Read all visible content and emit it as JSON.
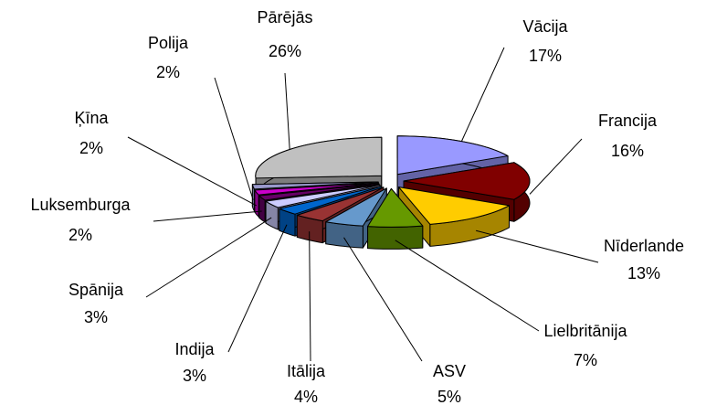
{
  "chart_data": {
    "type": "pie",
    "categories": [
      "Vācija",
      "Francija",
      "Nīderlande",
      "Lielbritānija",
      "ASV",
      "Itālija",
      "Indija",
      "Spānija",
      "Luksemburga",
      "Ķīna",
      "Polija",
      "Pārējās"
    ],
    "values": [
      17,
      16,
      13,
      7,
      5,
      4,
      3,
      3,
      2,
      2,
      2,
      26
    ],
    "value_labels": [
      "17%",
      "16%",
      "13%",
      "7%",
      "5%",
      "4%",
      "3%",
      "3%",
      "2%",
      "2%",
      "2%",
      "26%"
    ],
    "colors": [
      "#9999ff",
      "#800000",
      "#ffcc00",
      "#669900",
      "#6699cc",
      "#993333",
      "#0066cc",
      "#ccccff",
      "#660066",
      "#cc00cc",
      "#9999cc",
      "#c0c0c0"
    ]
  }
}
